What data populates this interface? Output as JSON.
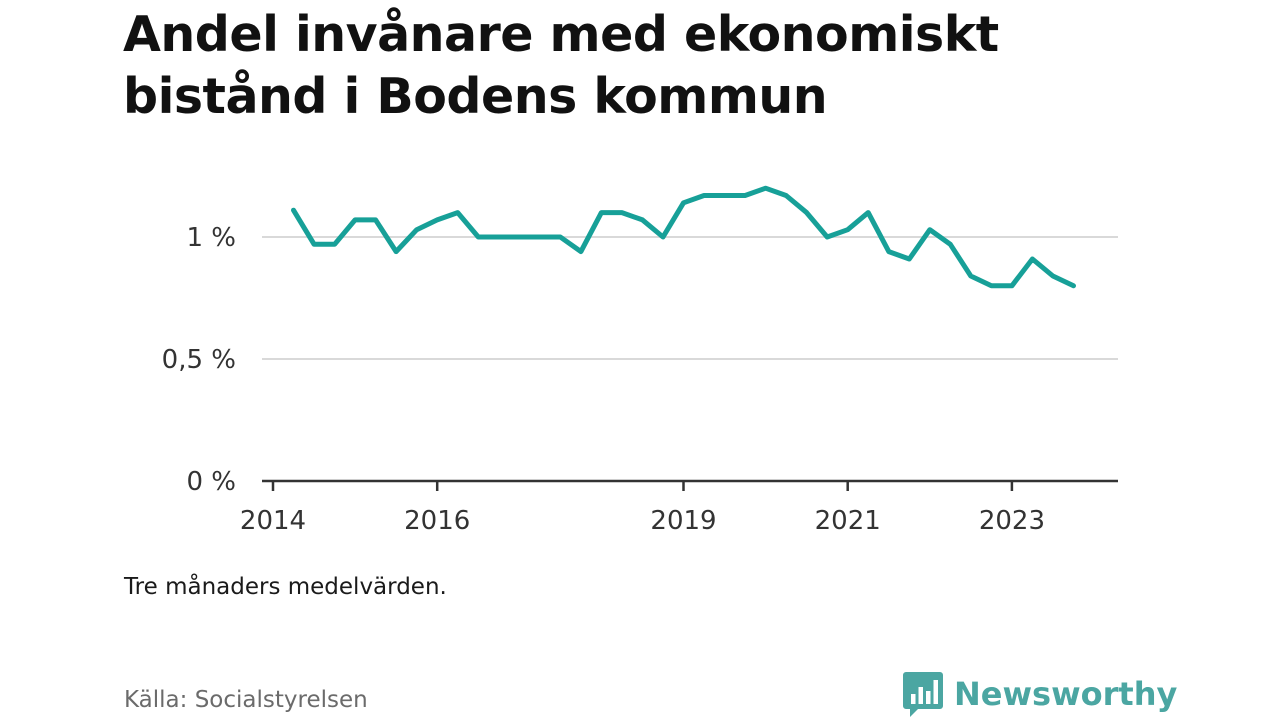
{
  "header": {
    "title": "Andel invånare med ekonomiskt bistånd i Bodens kommun"
  },
  "chart_data": {
    "type": "line",
    "title": "Andel invånare med ekonomiskt bistånd i Bodens kommun",
    "xlabel": "",
    "ylabel": "",
    "x_ticks": [
      "2014",
      "2016",
      "2019",
      "2021",
      "2023"
    ],
    "y_ticks": [
      "0 %",
      "0,5 %",
      "1 %"
    ],
    "ylim": [
      0,
      1.25
    ],
    "grid": true,
    "line_color": "#17a098",
    "series": [
      {
        "x": [
          "2014-04",
          "2014-07",
          "2014-10",
          "2015-01",
          "2015-04",
          "2015-07",
          "2015-10",
          "2016-01",
          "2016-04",
          "2016-07",
          "2016-10",
          "2017-01",
          "2017-04",
          "2017-07",
          "2017-10",
          "2018-01",
          "2018-04",
          "2018-07",
          "2018-10",
          "2019-01",
          "2019-04",
          "2019-07",
          "2019-10",
          "2020-01",
          "2020-04",
          "2020-07",
          "2020-10",
          "2021-01",
          "2021-04",
          "2021-07",
          "2021-10",
          "2022-01",
          "2022-04",
          "2022-07",
          "2022-10",
          "2023-01",
          "2023-04",
          "2023-07",
          "2023-10"
        ],
        "values": [
          1.11,
          0.97,
          0.97,
          1.07,
          1.07,
          0.94,
          1.03,
          1.07,
          1.1,
          1.0,
          1.0,
          1.0,
          1.0,
          1.0,
          0.94,
          1.1,
          1.1,
          1.07,
          1.0,
          1.14,
          1.17,
          1.17,
          1.17,
          1.2,
          1.17,
          1.1,
          1.0,
          1.03,
          1.1,
          0.94,
          0.91,
          1.03,
          0.97,
          0.84,
          0.8,
          0.8,
          0.91,
          0.84,
          0.8
        ]
      }
    ]
  },
  "footer": {
    "note": "Tre månaders medelvärden.",
    "source": "Källa: Socialstyrelsen",
    "brand": "Newsworthy",
    "brand_color": "#4ba6a2",
    "brand_icon": "bar-chart-speech-bubble-icon"
  }
}
